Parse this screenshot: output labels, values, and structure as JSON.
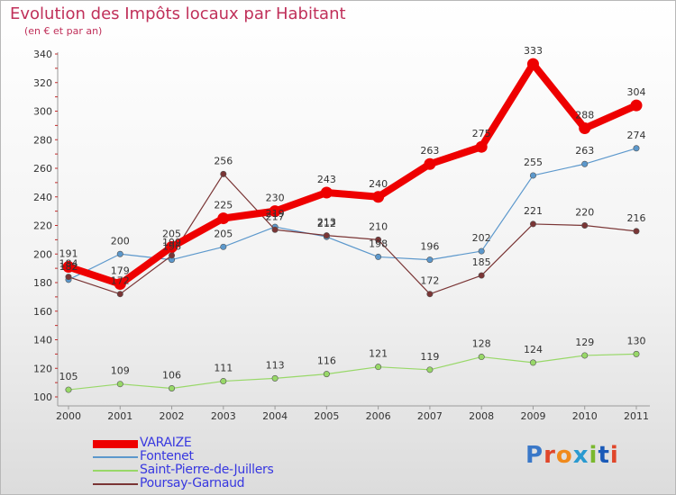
{
  "header": {
    "title": "Evolution des Impôts locaux par Habitant",
    "subtitle": "(en € et par an)"
  },
  "logo": {
    "text": "Proxiti",
    "colors": [
      "#3a78c8",
      "#e0462a",
      "#f08a1c",
      "#2a9ad0",
      "#7ab82e",
      "#1a5ab8",
      "#e0462a"
    ]
  },
  "chart_data": {
    "type": "line",
    "title": "Evolution des Impôts locaux par Habitant",
    "subtitle": "(en € et par an)",
    "xlabel": "",
    "ylabel": "",
    "categories": [
      "2000",
      "2001",
      "2002",
      "2003",
      "2004",
      "2005",
      "2006",
      "2007",
      "2008",
      "2009",
      "2010",
      "2011"
    ],
    "ylim": [
      100,
      340
    ],
    "yticks": [
      100,
      120,
      140,
      160,
      180,
      200,
      220,
      240,
      260,
      280,
      300,
      320,
      340
    ],
    "grid": false,
    "legend_position": "bottom-left",
    "series": [
      {
        "name": "VARAIZE",
        "color": "#ee0000",
        "emphasis": true,
        "values": [
          191,
          179,
          205,
          225,
          230,
          243,
          240,
          263,
          275,
          333,
          288,
          304
        ]
      },
      {
        "name": "Fontenet",
        "color": "#5c98cc",
        "emphasis": false,
        "values": [
          182,
          200,
          196,
          205,
          219,
          212,
          198,
          196,
          202,
          255,
          263,
          274
        ]
      },
      {
        "name": "Saint-Pierre-de-Juillers",
        "color": "#98d868",
        "emphasis": false,
        "values": [
          105,
          109,
          106,
          111,
          113,
          116,
          121,
          119,
          128,
          124,
          129,
          130
        ]
      },
      {
        "name": "Poursay-Garnaud",
        "color": "#7a3535",
        "emphasis": false,
        "values": [
          184,
          172,
          199,
          256,
          217,
          213,
          210,
          172,
          185,
          221,
          220,
          216
        ]
      }
    ]
  }
}
